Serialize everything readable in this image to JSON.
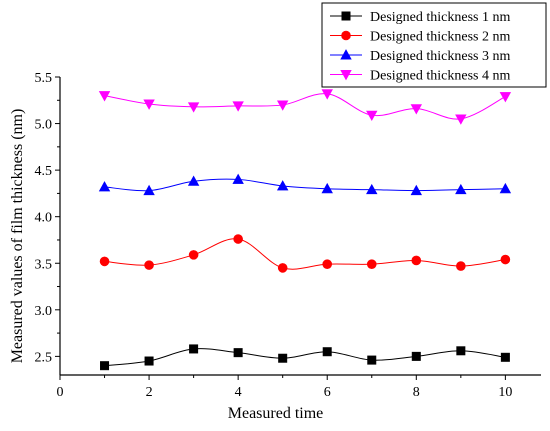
{
  "chart_data": {
    "type": "line",
    "xlabel": "Measured time",
    "ylabel": "Measured values of film thickness (nm)",
    "xlim": [
      0,
      10.8
    ],
    "ylim": [
      2.3,
      5.5
    ],
    "x_ticks": [
      0,
      2,
      4,
      6,
      8,
      10
    ],
    "y_ticks": [
      2.5,
      3.0,
      3.5,
      4.0,
      4.5,
      5.0,
      5.5
    ],
    "x_tick_labels": [
      "0",
      "2",
      "4",
      "6",
      "8",
      "10"
    ],
    "y_tick_labels": [
      "2.5",
      "3.0",
      "3.5",
      "4.0",
      "4.5",
      "5.0",
      "5.5"
    ],
    "x": [
      1,
      2,
      3,
      4,
      5,
      6,
      7,
      8,
      9,
      10
    ],
    "legend_position": "top-right",
    "smoothed": true,
    "series": [
      {
        "name": "Designed thickness 1 nm",
        "color": "#000000",
        "marker": "square",
        "values": [
          2.4,
          2.45,
          2.58,
          2.54,
          2.48,
          2.55,
          2.46,
          2.5,
          2.56,
          2.49
        ]
      },
      {
        "name": "Designed thickness 2 nm",
        "color": "#ff0000",
        "marker": "circle",
        "values": [
          3.52,
          3.48,
          3.59,
          3.76,
          3.45,
          3.49,
          3.49,
          3.53,
          3.47,
          3.54
        ]
      },
      {
        "name": "Designed thickness 3 nm",
        "color": "#0000ff",
        "marker": "triangle-up",
        "values": [
          4.32,
          4.28,
          4.38,
          4.4,
          4.33,
          4.3,
          4.29,
          4.28,
          4.29,
          4.3
        ]
      },
      {
        "name": "Designed thickness 4 nm",
        "color": "#ff00ff",
        "marker": "triangle-down",
        "values": [
          5.3,
          5.21,
          5.18,
          5.19,
          5.2,
          5.32,
          5.09,
          5.16,
          5.05,
          5.29
        ]
      }
    ]
  }
}
